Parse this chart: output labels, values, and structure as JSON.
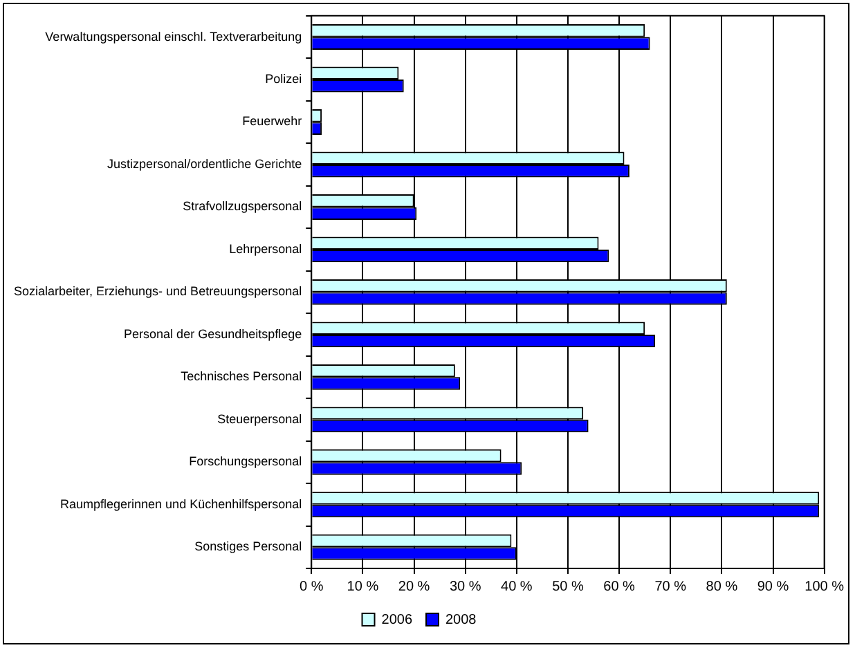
{
  "chart_data": {
    "type": "bar",
    "orientation": "horizontal",
    "categories": [
      "Verwaltungspersonal einschl. Textverarbeitung",
      "Polizei",
      "Feuerwehr",
      "Justizpersonal/ordentliche Gerichte",
      "Strafvollzugspersonal",
      "Lehrpersonal",
      "Sozialarbeiter, Erziehungs- und Betreuungspersonal",
      "Personal der Gesundheitspflege",
      "Technisches Personal",
      "Steuerpersonal",
      "Forschungspersonal",
      "Raumpflegerinnen und Küchenhilfspersonal",
      "Sonstiges Personal"
    ],
    "series": [
      {
        "name": "2006",
        "color": "#ccffff",
        "values": [
          65,
          17,
          2,
          61,
          20,
          56,
          81,
          65,
          28,
          53,
          37,
          99,
          39
        ]
      },
      {
        "name": "2008",
        "color": "#0000ff",
        "values": [
          66,
          18,
          2,
          62,
          20.5,
          58,
          81,
          67,
          29,
          54,
          41,
          99,
          40
        ]
      }
    ],
    "xlim": [
      0,
      100
    ],
    "xticks": [
      {
        "value": 0,
        "label": "0 %"
      },
      {
        "value": 10,
        "label": "10 %"
      },
      {
        "value": 20,
        "label": "20 %"
      },
      {
        "value": 30,
        "label": "30 %"
      },
      {
        "value": 40,
        "label": "40 %"
      },
      {
        "value": 50,
        "label": "50 %"
      },
      {
        "value": 60,
        "label": "60 %"
      },
      {
        "value": 70,
        "label": "70 %"
      },
      {
        "value": 80,
        "label": "80 %"
      },
      {
        "value": 90,
        "label": "90 %"
      },
      {
        "value": 100,
        "label": "100 %"
      }
    ],
    "grid": "x",
    "legend": "bottom"
  }
}
